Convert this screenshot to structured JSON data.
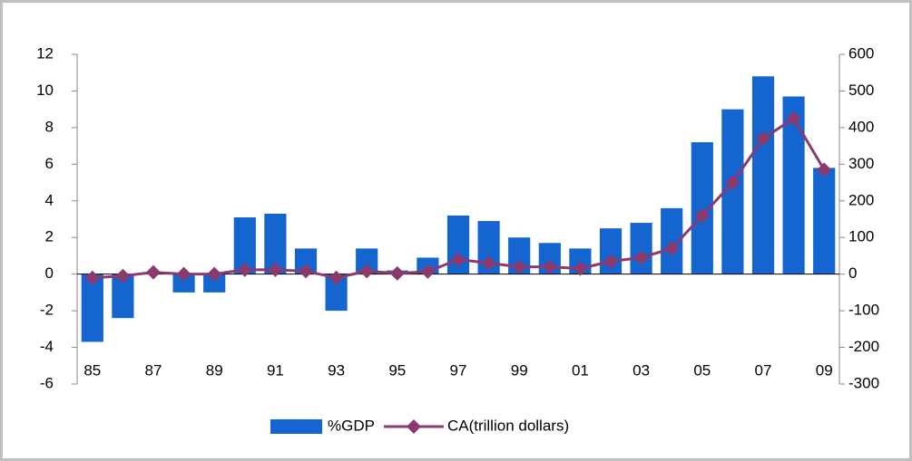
{
  "chart_data": {
    "type": "bar",
    "categories": [
      "85",
      null,
      "87",
      null,
      "89",
      null,
      "91",
      null,
      "93",
      null,
      "95",
      null,
      "97",
      null,
      "99",
      null,
      "01",
      null,
      "03",
      null,
      "05",
      null,
      "07",
      null,
      "09"
    ],
    "series": [
      {
        "name": "%GDP",
        "type": "bar",
        "color": "#1565d0",
        "values": [
          -3.7,
          -2.4,
          0.1,
          -1.0,
          -1.0,
          3.1,
          3.3,
          1.4,
          -2.0,
          1.4,
          0.2,
          0.9,
          3.2,
          2.9,
          2.0,
          1.7,
          1.4,
          2.5,
          2.8,
          3.6,
          7.2,
          9.0,
          10.8,
          9.7,
          5.8
        ]
      },
      {
        "name": "CA(trillion dollars)",
        "type": "line",
        "axis": "y2",
        "color": "#8b3a6e",
        "values": [
          -10,
          -5,
          5,
          0,
          0,
          12,
          12,
          8,
          -10,
          8,
          2,
          7,
          40,
          30,
          20,
          20,
          15,
          35,
          45,
          70,
          160,
          250,
          370,
          425,
          285
        ]
      }
    ],
    "ylim": [
      -6,
      12
    ],
    "yticks": [
      -6,
      -4,
      -2,
      0,
      2,
      4,
      6,
      8,
      10,
      12
    ],
    "y2lim": [
      -300,
      600
    ],
    "y2ticks": [
      -300,
      -200,
      -100,
      0,
      100,
      200,
      300,
      400,
      500,
      600
    ],
    "legend": "bottom"
  }
}
